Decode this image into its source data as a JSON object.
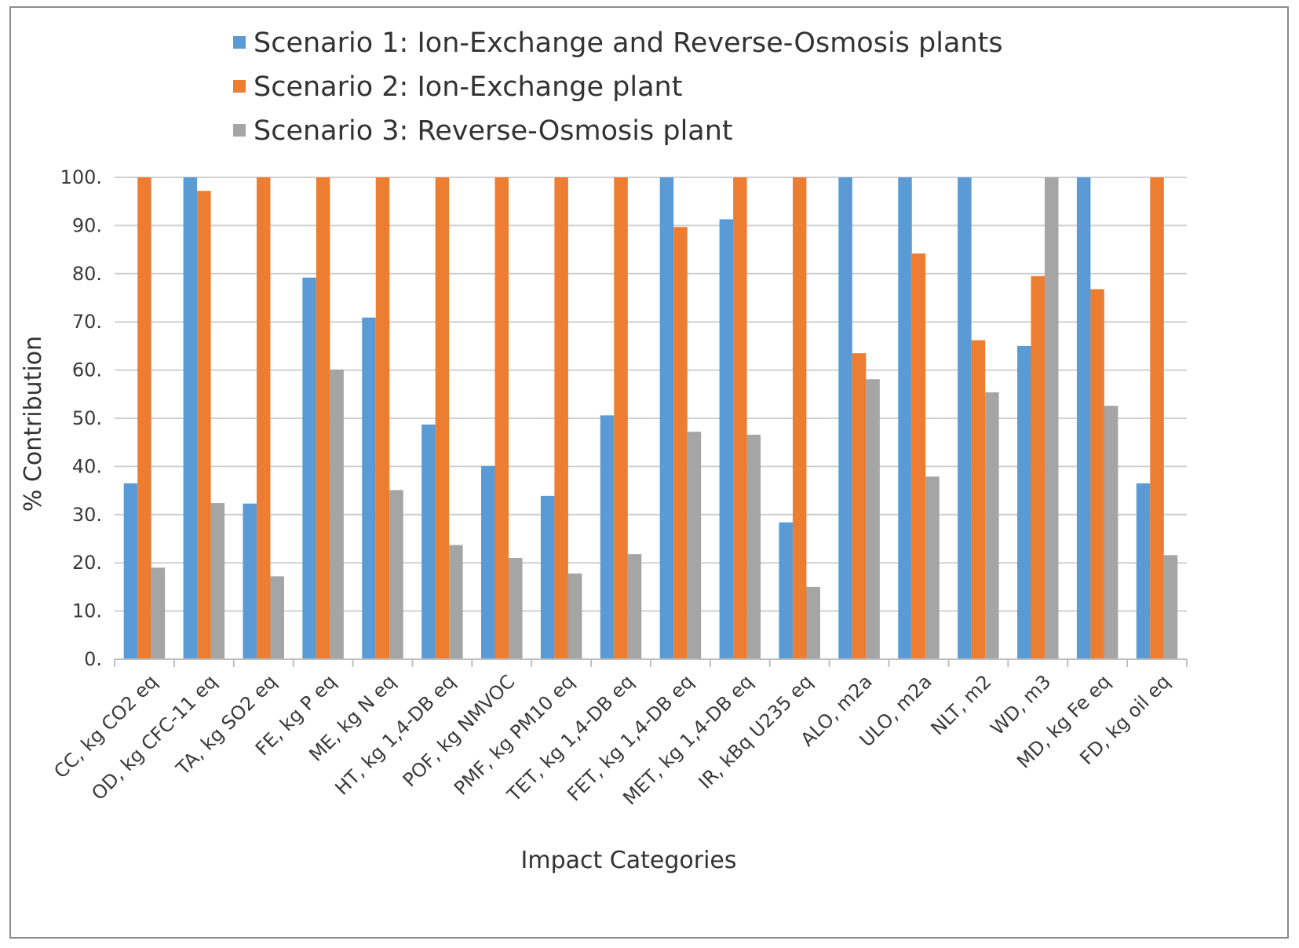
{
  "chart_data": {
    "type": "bar",
    "title": "",
    "xlabel": "Impact Categories",
    "ylabel": "% Contribution",
    "ylim": [
      0,
      100
    ],
    "yticks": [
      0,
      10,
      20,
      30,
      40,
      50,
      60,
      70,
      80,
      90,
      100
    ],
    "ytick_labels": [
      "0.",
      "10.",
      "20.",
      "30.",
      "40.",
      "50.",
      "60.",
      "70.",
      "80.",
      "90.",
      "100."
    ],
    "grid": true,
    "legend_position": "top",
    "categories": [
      "CC, kg CO2 eq",
      "OD, kg CFC-11 eq",
      "TA, kg SO2 eq",
      "FE, kg P eq",
      "ME, kg N eq",
      "HT, kg 1,4-DB eq",
      "POF, kg NMVOC",
      "PMF, kg PM10 eq",
      "TET, kg 1,4-DB eq",
      "FET, kg 1,4-DB eq",
      "MET, kg 1,4-DB eq",
      "IR, kBq U235 eq",
      "ALO, m2a",
      "ULO, m2a",
      "NLT, m2",
      "WD, m3",
      "MD, kg Fe eq",
      "FD, kg oil eq"
    ],
    "series": [
      {
        "name": "Scenario 1: Ion-Exchange and Reverse-Osmosis plants",
        "color": "#5B9BD5",
        "values": [
          36.5,
          100,
          32.3,
          79.2,
          70.9,
          48.7,
          40.1,
          33.9,
          50.6,
          100,
          91.3,
          28.4,
          100,
          100,
          100,
          65.0,
          100,
          36.5
        ]
      },
      {
        "name": "Scenario 2: Ion-Exchange plant",
        "color": "#ED7D31",
        "values": [
          100,
          97.2,
          100,
          100,
          100,
          100,
          100,
          100,
          100,
          89.7,
          100,
          100,
          63.5,
          84.2,
          66.2,
          79.5,
          76.8,
          100
        ]
      },
      {
        "name": "Scenario 3: Reverse-Osmosis plant",
        "color": "#A5A5A5",
        "values": [
          19.0,
          32.4,
          17.2,
          60.1,
          35.1,
          23.7,
          21.0,
          17.8,
          21.8,
          47.2,
          46.6,
          15.0,
          58.1,
          37.9,
          55.4,
          100,
          52.6,
          21.6
        ]
      }
    ]
  }
}
